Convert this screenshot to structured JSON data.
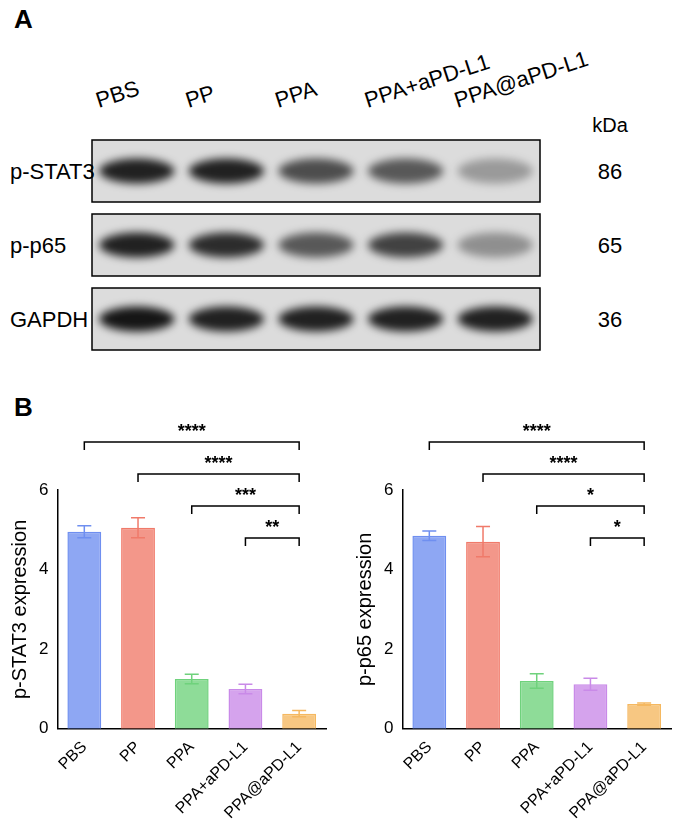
{
  "panel_labels": [
    "A",
    "B"
  ],
  "blot": {
    "lanes": [
      "PBS",
      "PP",
      "PPA",
      "PPA+aPD-L1",
      "PPA@aPD-L1"
    ],
    "kda_header": "kDa",
    "rows": [
      {
        "label": "p-STAT3",
        "kda": 86,
        "band_intensity": [
          0.85,
          0.85,
          0.65,
          0.6,
          0.3
        ]
      },
      {
        "label": "p-p65",
        "kda": 65,
        "band_intensity": [
          0.85,
          0.8,
          0.6,
          0.7,
          0.35
        ]
      },
      {
        "label": "GAPDH",
        "kda": 36,
        "band_intensity": [
          0.9,
          0.85,
          0.85,
          0.85,
          0.85
        ]
      }
    ]
  },
  "chart_data": [
    {
      "type": "bar",
      "y_label": "p-STAT3 expression",
      "categories": [
        "PBS",
        "PP",
        "PPA",
        "PPA+aPD-L1",
        "PPA@aPD-L1"
      ],
      "values": [
        4.95,
        5.05,
        1.25,
        1.0,
        0.38
      ],
      "errors": [
        0.15,
        0.25,
        0.12,
        0.12,
        0.08
      ],
      "colors": [
        "#6f8ff0",
        "#f07a6a",
        "#6fd27c",
        "#c98ae8",
        "#f5b860"
      ],
      "ylim": [
        0,
        6
      ],
      "yticks": [
        0,
        2,
        4,
        6
      ],
      "grid": false,
      "significance": [
        {
          "from": "PBS",
          "to": "PPA@aPD-L1",
          "label": "****"
        },
        {
          "from": "PP",
          "to": "PPA@aPD-L1",
          "label": "****"
        },
        {
          "from": "PPA",
          "to": "PPA@aPD-L1",
          "label": "***"
        },
        {
          "from": "PPA+aPD-L1",
          "to": "PPA@aPD-L1",
          "label": "**"
        }
      ]
    },
    {
      "type": "bar",
      "y_label": "p-p65 expression",
      "categories": [
        "PBS",
        "PP",
        "PPA",
        "PPA+aPD-L1",
        "PPA@aPD-L1"
      ],
      "values": [
        4.85,
        4.7,
        1.2,
        1.12,
        0.62
      ],
      "errors": [
        0.12,
        0.38,
        0.18,
        0.15,
        0.03
      ],
      "colors": [
        "#6f8ff0",
        "#f07a6a",
        "#6fd27c",
        "#c98ae8",
        "#f5b860"
      ],
      "ylim": [
        0,
        6
      ],
      "yticks": [
        0,
        2,
        4,
        6
      ],
      "grid": false,
      "significance": [
        {
          "from": "PBS",
          "to": "PPA@aPD-L1",
          "label": "****"
        },
        {
          "from": "PP",
          "to": "PPA@aPD-L1",
          "label": "****"
        },
        {
          "from": "PPA",
          "to": "PPA@aPD-L1",
          "label": "*"
        },
        {
          "from": "PPA+aPD-L1",
          "to": "PPA@aPD-L1",
          "label": "*"
        }
      ]
    }
  ]
}
